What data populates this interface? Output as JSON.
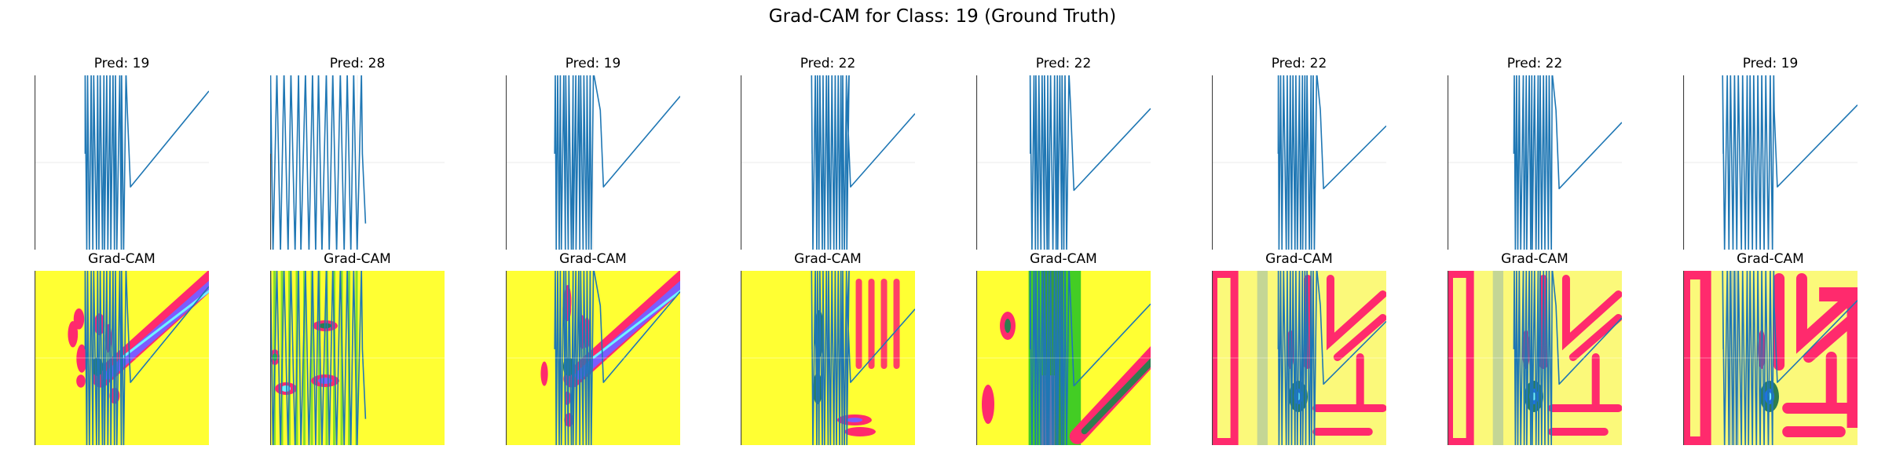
{
  "suptitle": "Grad-CAM for Class: 19 (Ground Truth)",
  "colors": {
    "signal": "#1f77b4",
    "grid": "#ebebeb",
    "axis": "#404040",
    "heat_base": "#ffff33",
    "heat_pale": "#fbf97a",
    "heat_ring": "#ff2a6d",
    "heat_mid": "#2e7d4f",
    "heat_green": "#22c422",
    "heat_blue": "#1e6fe8",
    "heat_purple": "#7b5cff",
    "heat_cyan": "#6ff3ff"
  },
  "chart_data": {
    "type": "line",
    "columns": [
      {
        "pred_title": "Pred: 19",
        "cam_title": "Grad-CAM",
        "cluster_start": 0.29,
        "cluster_end": 0.52,
        "kink_x": 0.55,
        "kink_y": 0.64,
        "end_y": 0.09,
        "cam_pattern": "diagonal-band",
        "cam_tint": "strong"
      },
      {
        "pred_title": "Pred: 28",
        "cam_title": "Grad-CAM",
        "cluster_start": 0.0,
        "cluster_end": 0.52,
        "kink_x": null,
        "kink_y": null,
        "end_y": null,
        "cam_pattern": "vertical-bars",
        "cam_tint": "strong"
      },
      {
        "pred_title": "Pred: 19",
        "cam_title": "Grad-CAM",
        "cluster_start": 0.28,
        "cluster_end": 0.5,
        "kink_x": 0.56,
        "kink_y": 0.64,
        "end_y": 0.12,
        "cam_pattern": "diagonal-band",
        "cam_tint": "strong"
      },
      {
        "pred_title": "Pred: 22",
        "cam_title": "Grad-CAM",
        "cluster_start": 0.41,
        "cluster_end": 0.62,
        "kink_x": 0.63,
        "kink_y": 0.64,
        "end_y": 0.22,
        "cam_pattern": "vertical-right",
        "cam_tint": "strong"
      },
      {
        "pred_title": "Pred: 22",
        "cam_title": "Grad-CAM",
        "cluster_start": 0.31,
        "cluster_end": 0.53,
        "kink_x": 0.56,
        "kink_y": 0.66,
        "end_y": 0.19,
        "cam_pattern": "green-column",
        "cam_tint": "strong"
      },
      {
        "pred_title": "Pred: 22",
        "cam_title": "Grad-CAM",
        "cluster_start": 0.38,
        "cluster_end": 0.6,
        "kink_x": 0.64,
        "kink_y": 0.65,
        "end_y": 0.29,
        "cam_pattern": "grid-boxes",
        "cam_tint": "pale"
      },
      {
        "pred_title": "Pred: 22",
        "cam_title": "Grad-CAM",
        "cluster_start": 0.38,
        "cluster_end": 0.6,
        "kink_x": 0.64,
        "kink_y": 0.65,
        "end_y": 0.27,
        "cam_pattern": "grid-boxes",
        "cam_tint": "pale"
      },
      {
        "pred_title": "Pred: 19",
        "cam_title": "Grad-CAM",
        "cluster_start": 0.23,
        "cluster_end": 0.52,
        "kink_x": 0.54,
        "kink_y": 0.64,
        "end_y": 0.17,
        "cam_pattern": "grid-boxes-red",
        "cam_tint": "pale"
      }
    ],
    "grid": true,
    "axes_visible": false
  }
}
